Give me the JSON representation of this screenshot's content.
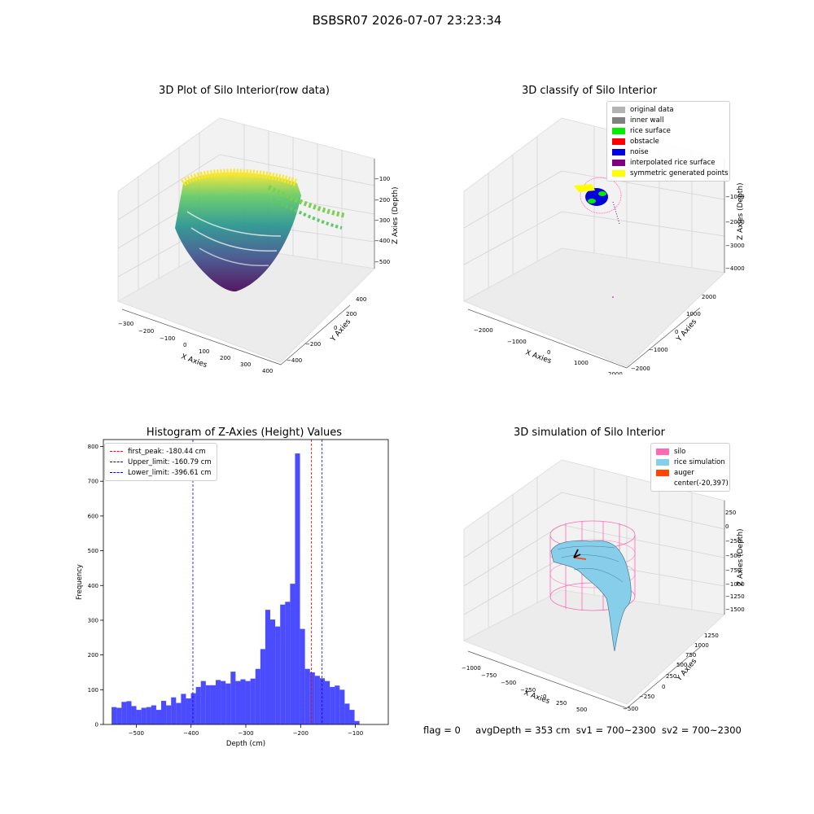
{
  "figure_title": "BSBSR07 2026-07-07 23:23:34",
  "panels": {
    "raw": {
      "title": "3D Plot of Silo Interior(row data)",
      "xlabel": "X Axies",
      "ylabel": "Y Axies",
      "zlabel": "Z Axies (Depth)",
      "xticks": [
        "−300",
        "−200",
        "−100",
        "0",
        "100",
        "200",
        "300",
        "400"
      ],
      "yticks": [
        "−400",
        "−200",
        "0",
        "200",
        "400"
      ],
      "zticks": [
        "−100",
        "−200",
        "−300",
        "−400",
        "−500"
      ]
    },
    "classify": {
      "title": "3D classify of Silo Interior",
      "xlabel": "X Axies",
      "ylabel": "Y Axies",
      "zlabel": "Z Axies (Depth)",
      "xticks": [
        "−2000",
        "−1000",
        "0",
        "1000",
        "2000"
      ],
      "yticks": [
        "−2000",
        "−1000",
        "0",
        "1000",
        "2000"
      ],
      "zticks": [
        "0",
        "−1000",
        "−2000",
        "−3000",
        "−4000"
      ],
      "legend": [
        {
          "label": "original data",
          "color": "#b3b3b3"
        },
        {
          "label": "inner wall",
          "color": "#808080"
        },
        {
          "label": "rice surface",
          "color": "#00ee00"
        },
        {
          "label": "obstacle",
          "color": "#ff0000"
        },
        {
          "label": "noise",
          "color": "#0000ee"
        },
        {
          "label": "interpolated rice surface",
          "color": "#800080"
        },
        {
          "label": "symmetric generated points",
          "color": "#ffff00"
        }
      ]
    },
    "simulation": {
      "title": "3D simulation of Silo Interior",
      "xlabel": "X Axies",
      "ylabel": "Y Axies",
      "zlabel": "Z Axies (Depth)",
      "xticks": [
        "−1000",
        "−750",
        "−500",
        "−250",
        "0",
        "250",
        "500",
        "750"
      ],
      "yticks": [
        "−500",
        "−250",
        "0",
        "250",
        "500",
        "750",
        "1000",
        "1250"
      ],
      "zticks": [
        "250",
        "0",
        "−250",
        "−500",
        "−750",
        "−1000",
        "−1250",
        "−1500"
      ],
      "legend": [
        {
          "label": "silo",
          "color": "#ff69b4"
        },
        {
          "label": "rice simulation",
          "color": "#87ceeb"
        },
        {
          "label": "auger",
          "color": "#ff4500"
        },
        {
          "label": "center(-20,397)",
          "color": "none"
        }
      ]
    }
  },
  "chart_data": {
    "type": "bar",
    "title": "Histogram of Z-Axies (Height) Values",
    "xlabel": "Depth (cm)",
    "ylabel": "Frequency",
    "xlim": [
      -560,
      -40
    ],
    "ylim": [
      0,
      820
    ],
    "xticks": [
      -500,
      -400,
      -300,
      -200,
      -100
    ],
    "yticks": [
      0,
      100,
      200,
      300,
      400,
      500,
      600,
      700,
      800
    ],
    "bar_color": "#0000ff",
    "bin_start": -545,
    "bin_width": 9.05,
    "values": [
      50,
      48,
      65,
      67,
      53,
      42,
      48,
      50,
      55,
      42,
      68,
      55,
      78,
      62,
      88,
      75,
      90,
      108,
      125,
      113,
      113,
      128,
      125,
      118,
      152,
      125,
      130,
      125,
      132,
      160,
      217,
      330,
      302,
      282,
      345,
      353,
      405,
      780,
      275,
      160,
      150,
      140,
      133,
      125,
      108,
      112,
      100,
      60,
      42,
      10
    ],
    "vlines": [
      {
        "label": "first_peak: -180.44 cm",
        "x": -180.44,
        "color": "#ff0000"
      },
      {
        "label": "Upper_limit: -160.79 cm",
        "x": -160.79,
        "color": "#0000ff"
      },
      {
        "label": "Lower_limit: -396.61 cm",
        "x": -396.61,
        "color": "#0000ff"
      }
    ]
  },
  "status": {
    "flag": "flag = 0",
    "avg": "avgDepth = 353 cm",
    "sv1": "sv1 = 700~2300",
    "sv2": "sv2 = 700~2300"
  }
}
